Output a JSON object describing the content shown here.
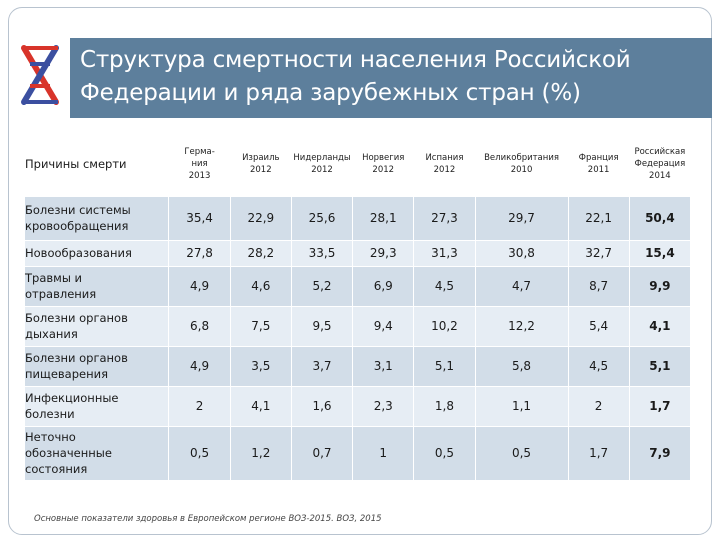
{
  "slide": {
    "title_line1": "Структура смертности населения Российской",
    "title_line2": "Федерации  и ряда зарубежных  стран (%)",
    "source": "Основные  показатели здоровья в Европейском регионе ВОЗ-2015. ВОЗ, 2015"
  },
  "colors": {
    "title_bg": "#5d7f9c",
    "row_dark": "#d2dde8",
    "row_light": "#e6edf4",
    "logo_red": "#d8342a",
    "logo_blue": "#3b4fa0"
  },
  "table": {
    "header_cause": "Причины смерти",
    "countries": [
      {
        "line1": "Герма-",
        "line2": "ния",
        "line3": "2013"
      },
      {
        "line1": "Израиль",
        "line2": "2012",
        "line3": ""
      },
      {
        "line1": "Нидерланды",
        "line2": "2012",
        "line3": ""
      },
      {
        "line1": "Норвегия",
        "line2": "2012",
        "line3": ""
      },
      {
        "line1": "Испания",
        "line2": "2012",
        "line3": ""
      },
      {
        "line1": "Великобритания",
        "line2": "2010",
        "line3": ""
      },
      {
        "line1": "Франция",
        "line2": "2011",
        "line3": ""
      },
      {
        "line1": "Российская",
        "line2": "Федерация",
        "line3": "2014"
      }
    ],
    "rows": [
      {
        "line1": "Болезни системы",
        "line2": "кровообращения",
        "line3": "",
        "values": [
          "35,4",
          "22,9",
          "25,6",
          "28,1",
          "27,3",
          "29,7",
          "22,1",
          "50,4"
        ]
      },
      {
        "line1": "Новообразования",
        "line2": "",
        "line3": "",
        "values": [
          "27,8",
          "28,2",
          "33,5",
          "29,3",
          "31,3",
          "30,8",
          "32,7",
          "15,4"
        ]
      },
      {
        "line1": "Травмы и",
        "line2": "отравления",
        "line3": "",
        "values": [
          "4,9",
          "4,6",
          "5,2",
          "6,9",
          "4,5",
          "4,7",
          "8,7",
          "9,9"
        ]
      },
      {
        "line1": "Болезни органов",
        "line2": "дыхания",
        "line3": "",
        "values": [
          "6,8",
          "7,5",
          "9,5",
          "9,4",
          "10,2",
          "12,2",
          "5,4",
          "4,1"
        ]
      },
      {
        "line1": "Болезни органов",
        "line2": "пищеварения",
        "line3": "",
        "values": [
          "4,9",
          "3,5",
          "3,7",
          "3,1",
          "5,1",
          "5,8",
          "4,5",
          "5,1"
        ]
      },
      {
        "line1": "Инфекционные",
        "line2": "болезни",
        "line3": "",
        "values": [
          "2",
          "4,1",
          "1,6",
          "2,3",
          "1,8",
          "1,1",
          "2",
          "1,7"
        ]
      },
      {
        "line1": "Неточно",
        "line2": "обозначенные",
        "line3": "состояния",
        "values": [
          "0,5",
          "1,2",
          "0,7",
          "1",
          "0,5",
          "0,5",
          "1,7",
          "7,9"
        ]
      }
    ]
  }
}
